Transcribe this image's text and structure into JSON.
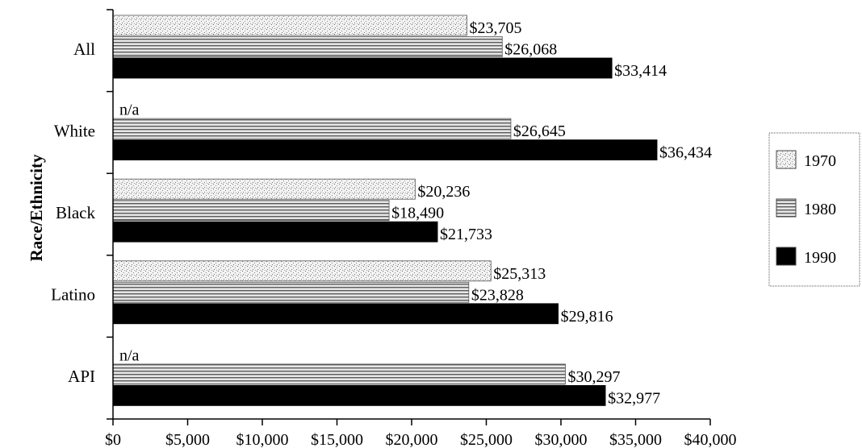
{
  "chart_data": {
    "type": "bar",
    "orientation": "horizontal",
    "title": "",
    "xlabel": "",
    "ylabel": "Race/Ethnicity",
    "xlim": [
      0,
      40000
    ],
    "xticks": [
      0,
      5000,
      10000,
      15000,
      20000,
      25000,
      30000,
      35000,
      40000
    ],
    "xtick_labels": [
      "$0",
      "$5,000",
      "$10,000",
      "$15,000",
      "$20,000",
      "$25,000",
      "$30,000",
      "$35,000",
      "$40,000"
    ],
    "categories": [
      "All",
      "White",
      "Black",
      "Latino",
      "API"
    ],
    "series": [
      {
        "name": "1970",
        "color": "#d9d9d9",
        "pattern": "dotted-light",
        "values": [
          23705,
          null,
          20236,
          25313,
          null
        ],
        "labels": [
          "$23,705",
          "n/a",
          "$20,236",
          "$25,313",
          "n/a"
        ]
      },
      {
        "name": "1980",
        "color": "#7f7f7f",
        "pattern": "horizontal-lines",
        "values": [
          26068,
          26645,
          18490,
          23828,
          30297
        ],
        "labels": [
          "$26,068",
          "$26,645",
          "$18,490",
          "$23,828",
          "$30,297"
        ]
      },
      {
        "name": "1990",
        "color": "#000000",
        "pattern": "solid",
        "values": [
          33414,
          36434,
          21733,
          29816,
          32977
        ],
        "labels": [
          "$33,414",
          "$36,434",
          "$21,733",
          "$29,816",
          "$32,977"
        ]
      }
    ],
    "grid": false,
    "legend_position": "right"
  }
}
